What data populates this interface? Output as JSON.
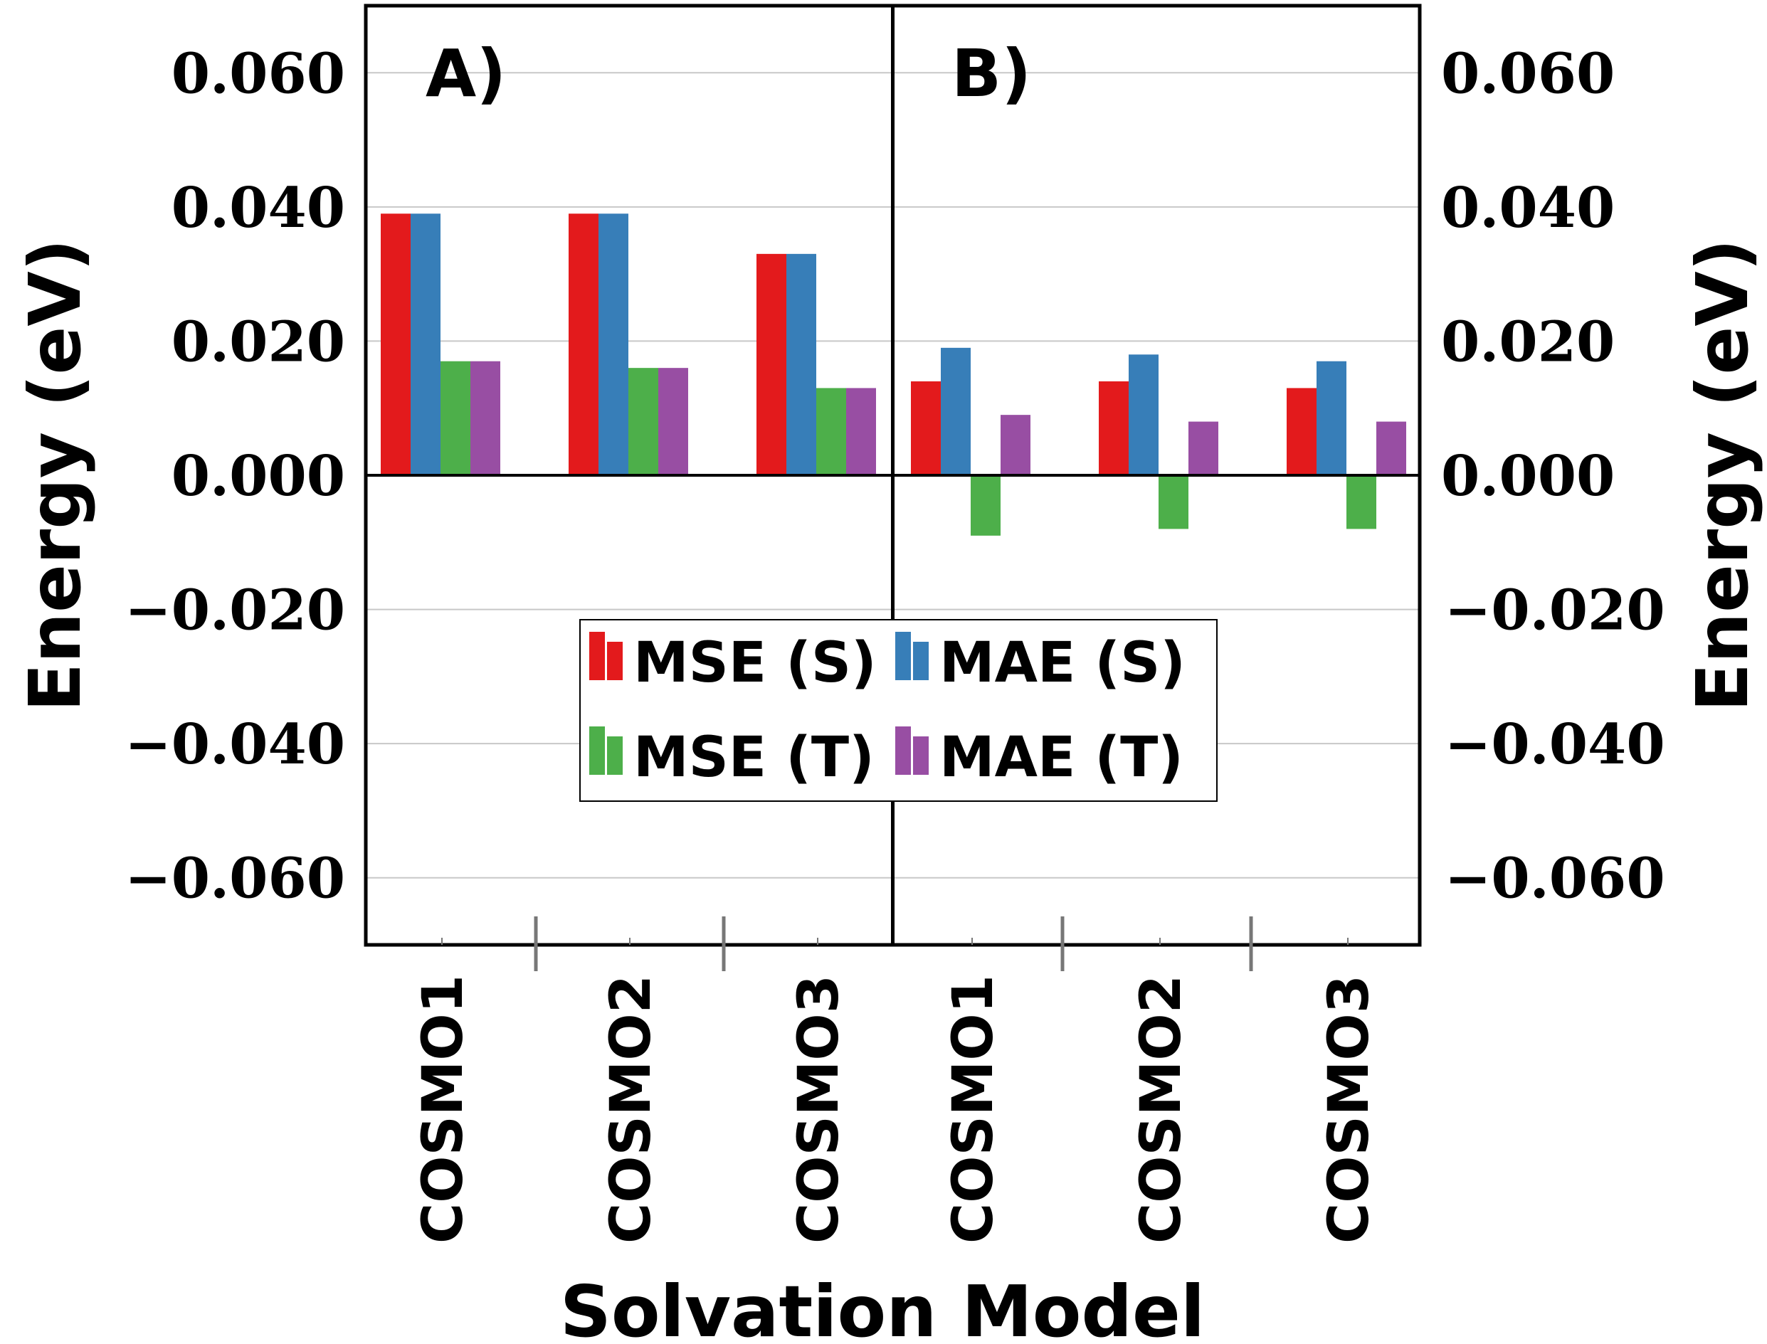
{
  "chart_data": {
    "type": "bar",
    "xlabel": "Solvation Model",
    "ylabel_left": "Energy (eV)",
    "ylabel_right": "Energy (eV)",
    "ylim": [
      -0.07,
      0.07
    ],
    "yticks": [
      0.06,
      0.04,
      0.02,
      0.0,
      -0.02,
      -0.04,
      -0.06
    ],
    "ytick_labels": [
      "0.060",
      "0.040",
      "0.020",
      "0.000",
      "−0.020",
      "−0.040",
      "−0.060"
    ],
    "grid": true,
    "legend_position": "center",
    "colors": {
      "MSE (S)": "#e31a1c",
      "MAE (S)": "#377eb8",
      "MSE (T)": "#4daf4a",
      "MAE (T)": "#984ea3"
    },
    "legend": [
      "MSE (S)",
      "MAE (S)",
      "MSE (T)",
      "MAE (T)"
    ],
    "panels": [
      {
        "label": "A)",
        "categories": [
          "COSMO1",
          "COSMO2",
          "COSMO3"
        ],
        "series": [
          {
            "name": "MSE (S)",
            "values": [
              0.039,
              0.039,
              0.033
            ]
          },
          {
            "name": "MAE (S)",
            "values": [
              0.039,
              0.039,
              0.033
            ]
          },
          {
            "name": "MSE (T)",
            "values": [
              0.017,
              0.016,
              0.013
            ]
          },
          {
            "name": "MAE (T)",
            "values": [
              0.017,
              0.016,
              0.013
            ]
          }
        ]
      },
      {
        "label": "B)",
        "categories": [
          "COSMO1",
          "COSMO2",
          "COSMO3"
        ],
        "series": [
          {
            "name": "MSE (S)",
            "values": [
              0.014,
              0.014,
              0.013
            ]
          },
          {
            "name": "MAE (S)",
            "values": [
              0.019,
              0.018,
              0.017
            ]
          },
          {
            "name": "MSE (T)",
            "values": [
              -0.009,
              -0.008,
              -0.008
            ]
          },
          {
            "name": "MAE (T)",
            "values": [
              0.009,
              0.008,
              0.008
            ]
          }
        ]
      }
    ]
  }
}
